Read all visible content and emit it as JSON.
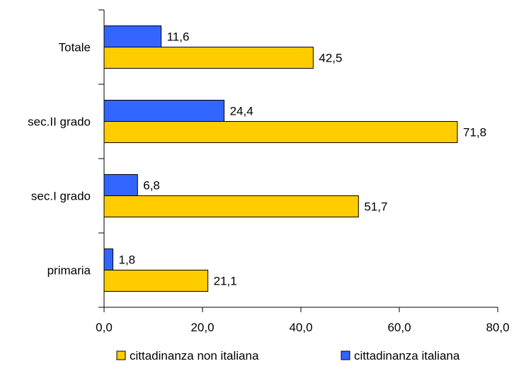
{
  "chart_data": {
    "type": "bar",
    "orientation": "horizontal",
    "categories": [
      "Totale",
      "sec.II grado",
      "sec.I grado",
      "primaria"
    ],
    "series": [
      {
        "name": "cittadinanza italiana",
        "values": [
          11.6,
          24.4,
          6.8,
          1.8
        ],
        "labels": [
          "11,6",
          "24,4",
          "6,8",
          "1,8"
        ],
        "color": "#3366FF"
      },
      {
        "name": "cittadinanza non italiana",
        "values": [
          42.5,
          71.8,
          51.7,
          21.1
        ],
        "labels": [
          "42,5",
          "71,8",
          "51,7",
          "21,1"
        ],
        "color": "#FFCC00"
      }
    ],
    "xlim": [
      0,
      80
    ],
    "x_ticks": [
      0,
      20,
      40,
      60,
      80
    ],
    "x_tick_labels": [
      "0,0",
      "20,0",
      "40,0",
      "60,0",
      "80,0"
    ],
    "grid": false,
    "legend_position": "bottom",
    "legend_order": [
      "cittadinanza non italiana",
      "cittadinanza italiana"
    ],
    "title": "",
    "xlabel": "",
    "ylabel": ""
  }
}
